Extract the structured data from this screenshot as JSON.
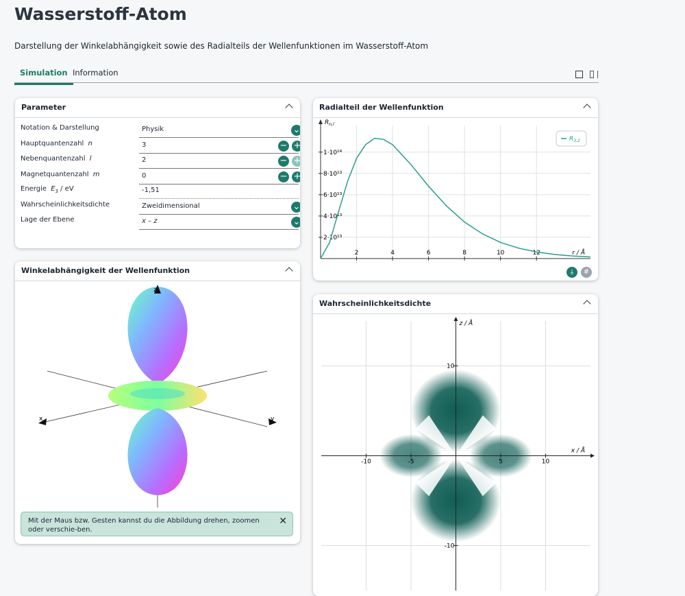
{
  "header": {
    "title": "Wasserstoff-Atom",
    "description": "Darstellung der Winkelabhängigkeit sowie des Radialteils der Wellenfunktionen im Wasserstoff-Atom"
  },
  "tabs": [
    "Simulation",
    "Information"
  ],
  "parameter_panel": {
    "title": "Parameter",
    "rows": [
      {
        "label": "Notation & Darstellung",
        "value": "Physik"
      },
      {
        "label": "Hauptquantenzahl",
        "symbol": "n",
        "value": "3"
      },
      {
        "label": "Nebenquantenzahl",
        "symbol": "l",
        "value": "2"
      },
      {
        "label": "Magnetquantenzahl",
        "symbol": "m",
        "value": "0"
      },
      {
        "label": "Energie",
        "symbol": "E",
        "symbol_sub": "3",
        "unit": "/  eV",
        "value": "-1,51"
      },
      {
        "label": "Wahrscheinlichkeitsdichte",
        "value": "Zweidimensional"
      },
      {
        "label": "Lage der Ebene",
        "value": "x – z"
      }
    ]
  },
  "angular_panel": {
    "title": "Winkelabhängigkeit der Wellenfunktion",
    "axis_labels": [
      "z",
      "x",
      "y"
    ],
    "hint": "Mit der Maus bzw. Gesten kannst du die Abbildung drehen, zoomen oder verschie-ben."
  },
  "radial_panel": {
    "title": "Radialteil der Wellenfunktion",
    "chart_data": {
      "type": "line",
      "x_label": "r / Å",
      "y_label": "R",
      "y_label_sub": "n,l",
      "x": [
        0,
        0.5,
        1,
        1.5,
        2,
        2.5,
        3,
        3.5,
        4,
        5,
        6,
        7,
        8,
        9,
        10,
        11,
        12,
        13,
        14,
        15
      ],
      "series": [
        {
          "name": "R",
          "name_sub": "3,2",
          "color": "#2a9d8f",
          "values": [
            0,
            15100000000000.0,
            44200000000000.0,
            72500000000000.0,
            94200000000000.0,
            107000000000000.0,
            113000000000000.0,
            112000000000000.0,
            107000000000000.0,
            88800000000000.0,
            68000000000000.0,
            49400000000000.0,
            34300000000000.0,
            23200000000000.0,
            15200000000000.0,
            9800000000000.0,
            6200000000000.0,
            3900000000000.0,
            2400000000000.0,
            1500000000000.0
          ]
        }
      ],
      "xlim": [
        0,
        15
      ],
      "ylim": [
        0,
        125000000000000.0
      ],
      "xticks": [
        2,
        4,
        6,
        8,
        10,
        12
      ],
      "yticks": [
        {
          "value": 20000000000000.0,
          "label": "2·10¹³"
        },
        {
          "value": 40000000000000.0,
          "label": "4·10¹³"
        },
        {
          "value": 60000000000000.0,
          "label": "6·10¹³"
        },
        {
          "value": 80000000000000.0,
          "label": "8·10¹³"
        },
        {
          "value": 100000000000000.0,
          "label": "1·10¹⁴"
        }
      ],
      "grid": true
    }
  },
  "density_panel": {
    "title": "Wahrscheinlichkeitsdichte",
    "chart_data": {
      "type": "density",
      "x_label": "x / Å",
      "y_label": "z / Å",
      "xlim": [
        -15,
        15
      ],
      "ylim": [
        -15,
        15
      ],
      "xticks": [
        -10,
        -5,
        5,
        10
      ],
      "yticks": [
        10,
        -10
      ],
      "grid": true,
      "color": "#0f5e55"
    }
  }
}
